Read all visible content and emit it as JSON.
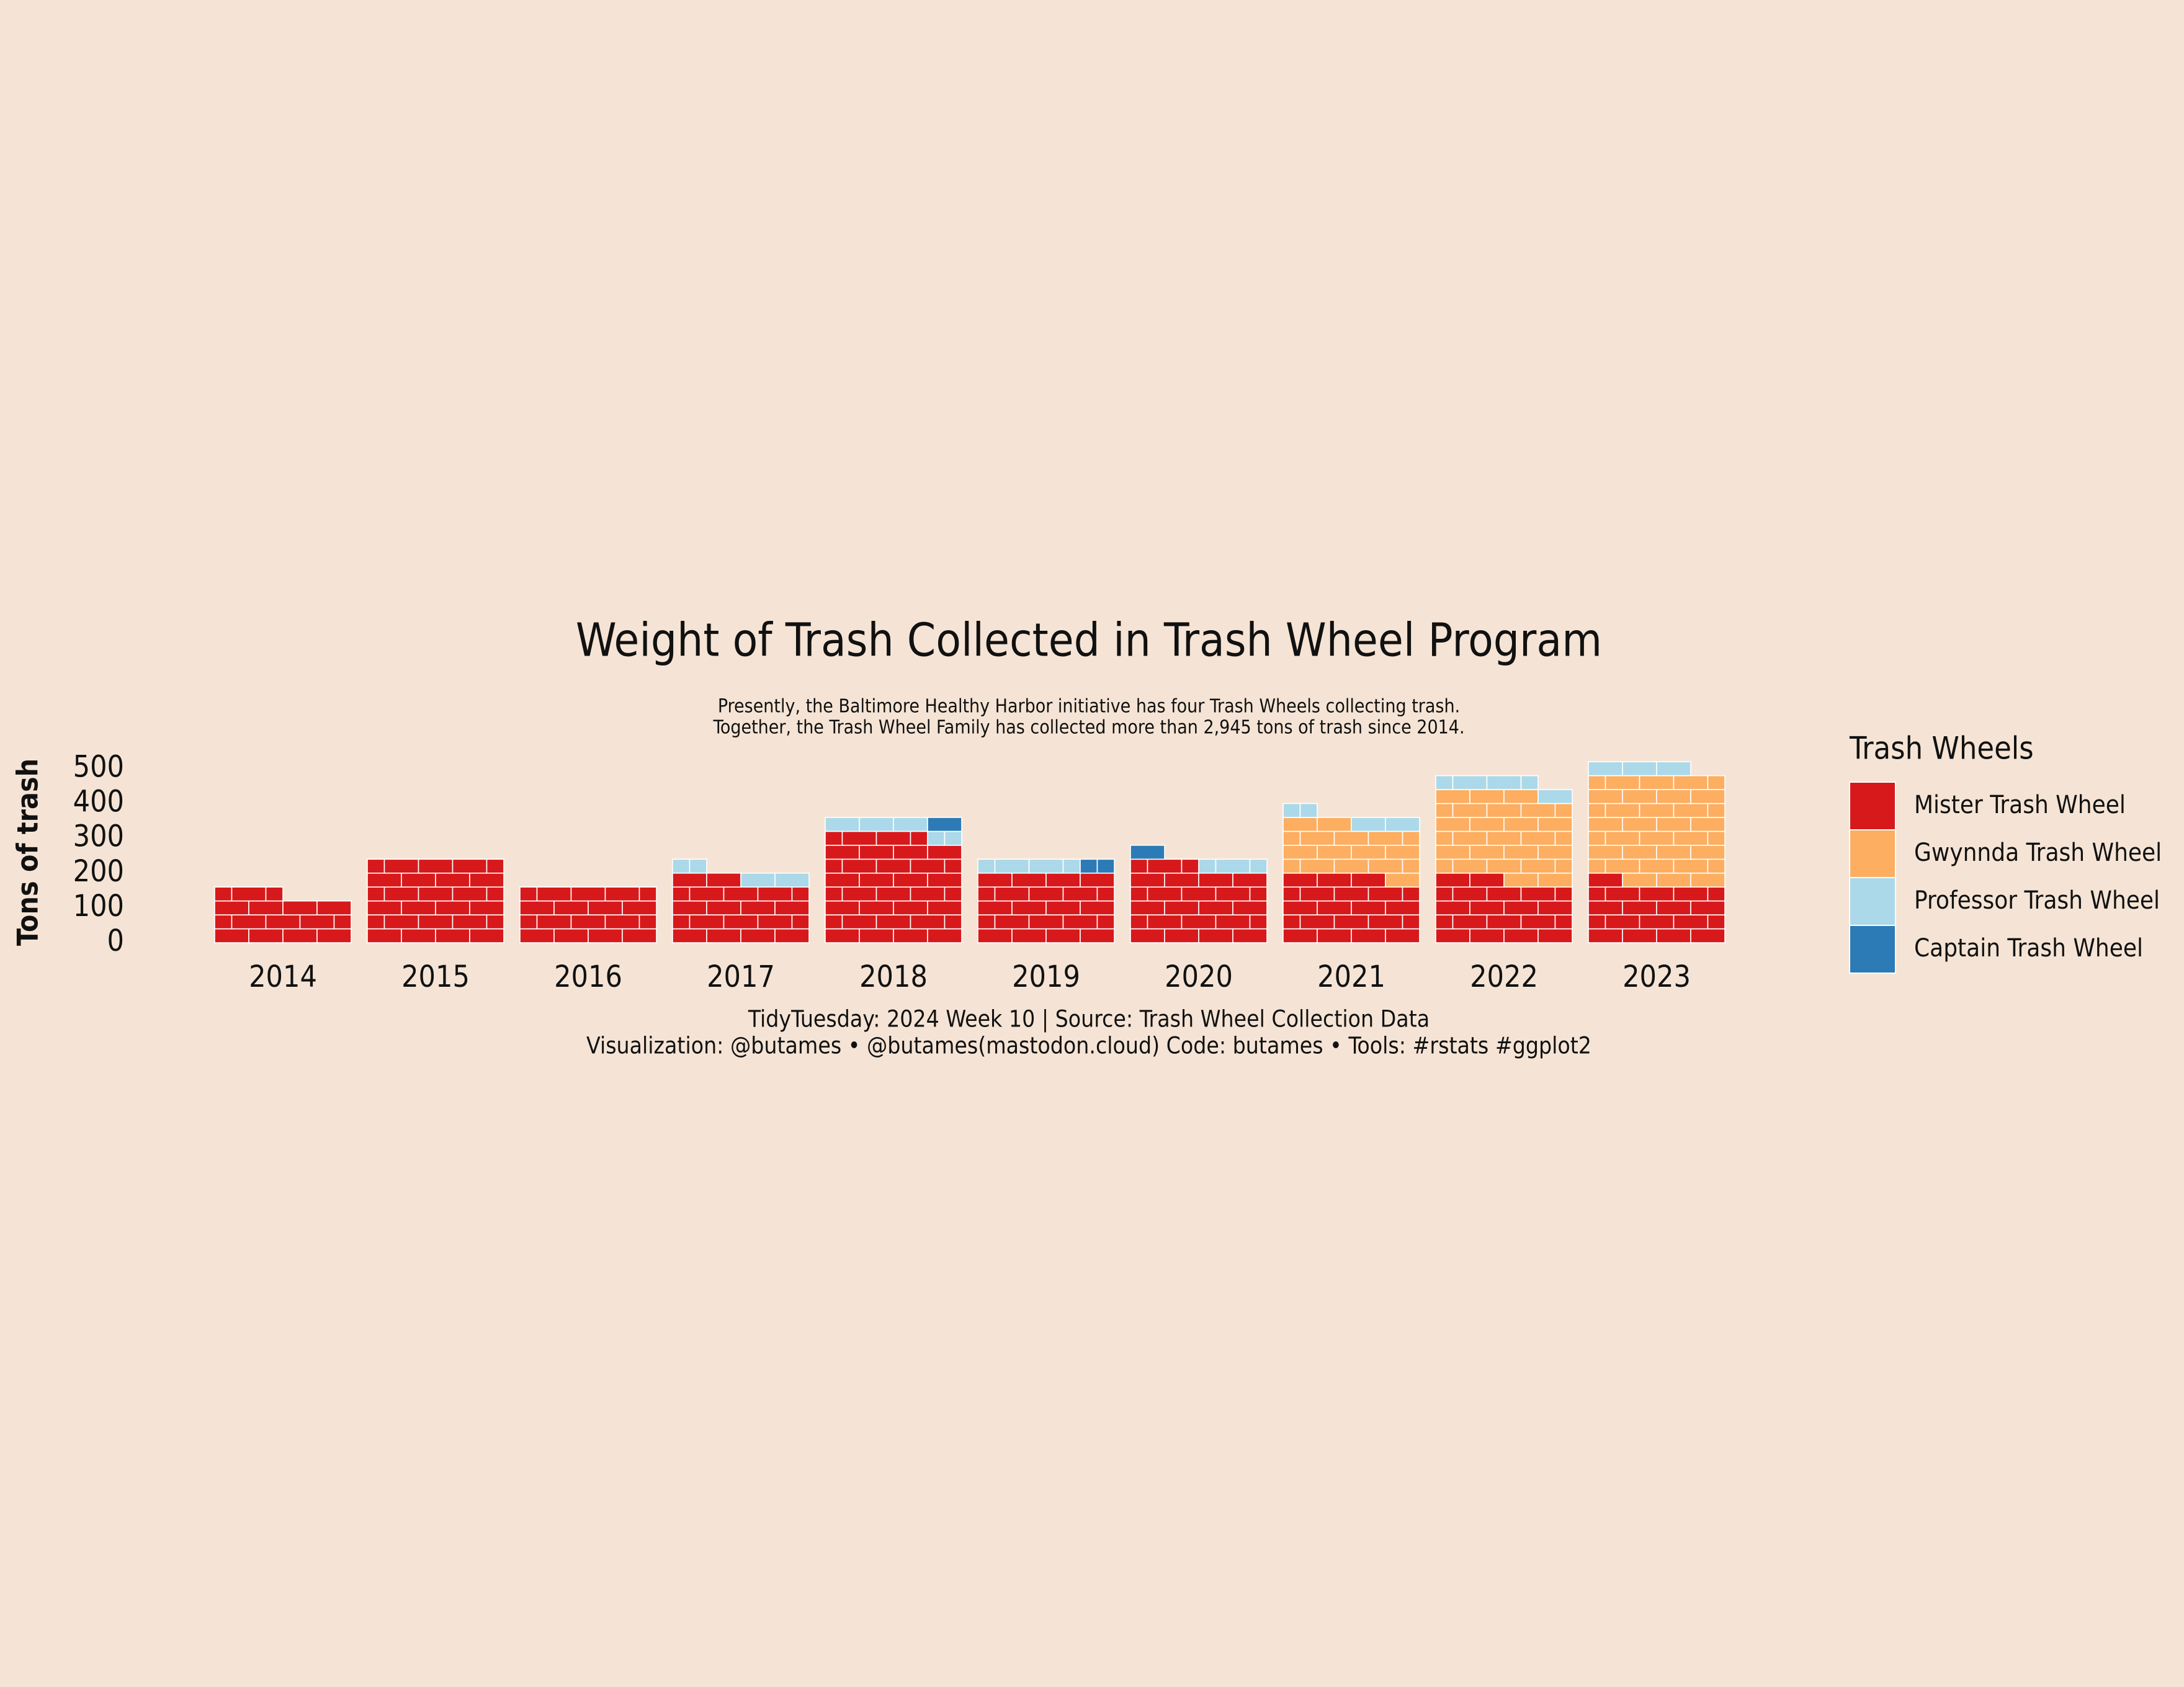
{
  "chart_data": {
    "type": "brick",
    "title": "Weight of Trash Collected in Trash Wheel Program",
    "subtitle": [
      "Presently, the Baltimore Healthy Harbor initiative has four Trash Wheels collecting trash.",
      "Together, the Trash Wheel Family has collected more than 2,945 tons of trash since 2014."
    ],
    "caption": [
      "TidyTuesday: 2024 Week 10 | Source: Trash Wheel Collection Data",
      "Visualization: @butames • @butames(mastodon.cloud) Code: butames • Tools: #rstats #ggplot2"
    ],
    "y_label": "Tons of trash",
    "legend_title": "Trash Wheels",
    "categories": [
      "2014",
      "2015",
      "2016",
      "2017",
      "2018",
      "2019",
      "2020",
      "2021",
      "2022",
      "2023"
    ],
    "series": [
      {
        "name": "Mister Trash Wheel",
        "color": "#d7191c",
        "values": [
          140,
          240,
          160,
          180,
          310,
          200,
          220,
          190,
          180,
          170
        ]
      },
      {
        "name": "Gwynnda Trash Wheel",
        "color": "#fdae61",
        "values": [
          0,
          0,
          0,
          0,
          0,
          0,
          0,
          150,
          250,
          310
        ]
      },
      {
        "name": "Professor Trash Wheel",
        "color": "#abd9e9",
        "values": [
          0,
          0,
          0,
          30,
          40,
          30,
          20,
          30,
          40,
          30
        ]
      },
      {
        "name": "Captain Trash Wheel",
        "color": "#2c7bb6",
        "values": [
          0,
          0,
          0,
          0,
          10,
          10,
          10,
          0,
          0,
          0
        ]
      }
    ],
    "ylim": [
      0,
      530
    ],
    "yticks": [
      0,
      100,
      200,
      300,
      400,
      500
    ],
    "stacked": true
  }
}
